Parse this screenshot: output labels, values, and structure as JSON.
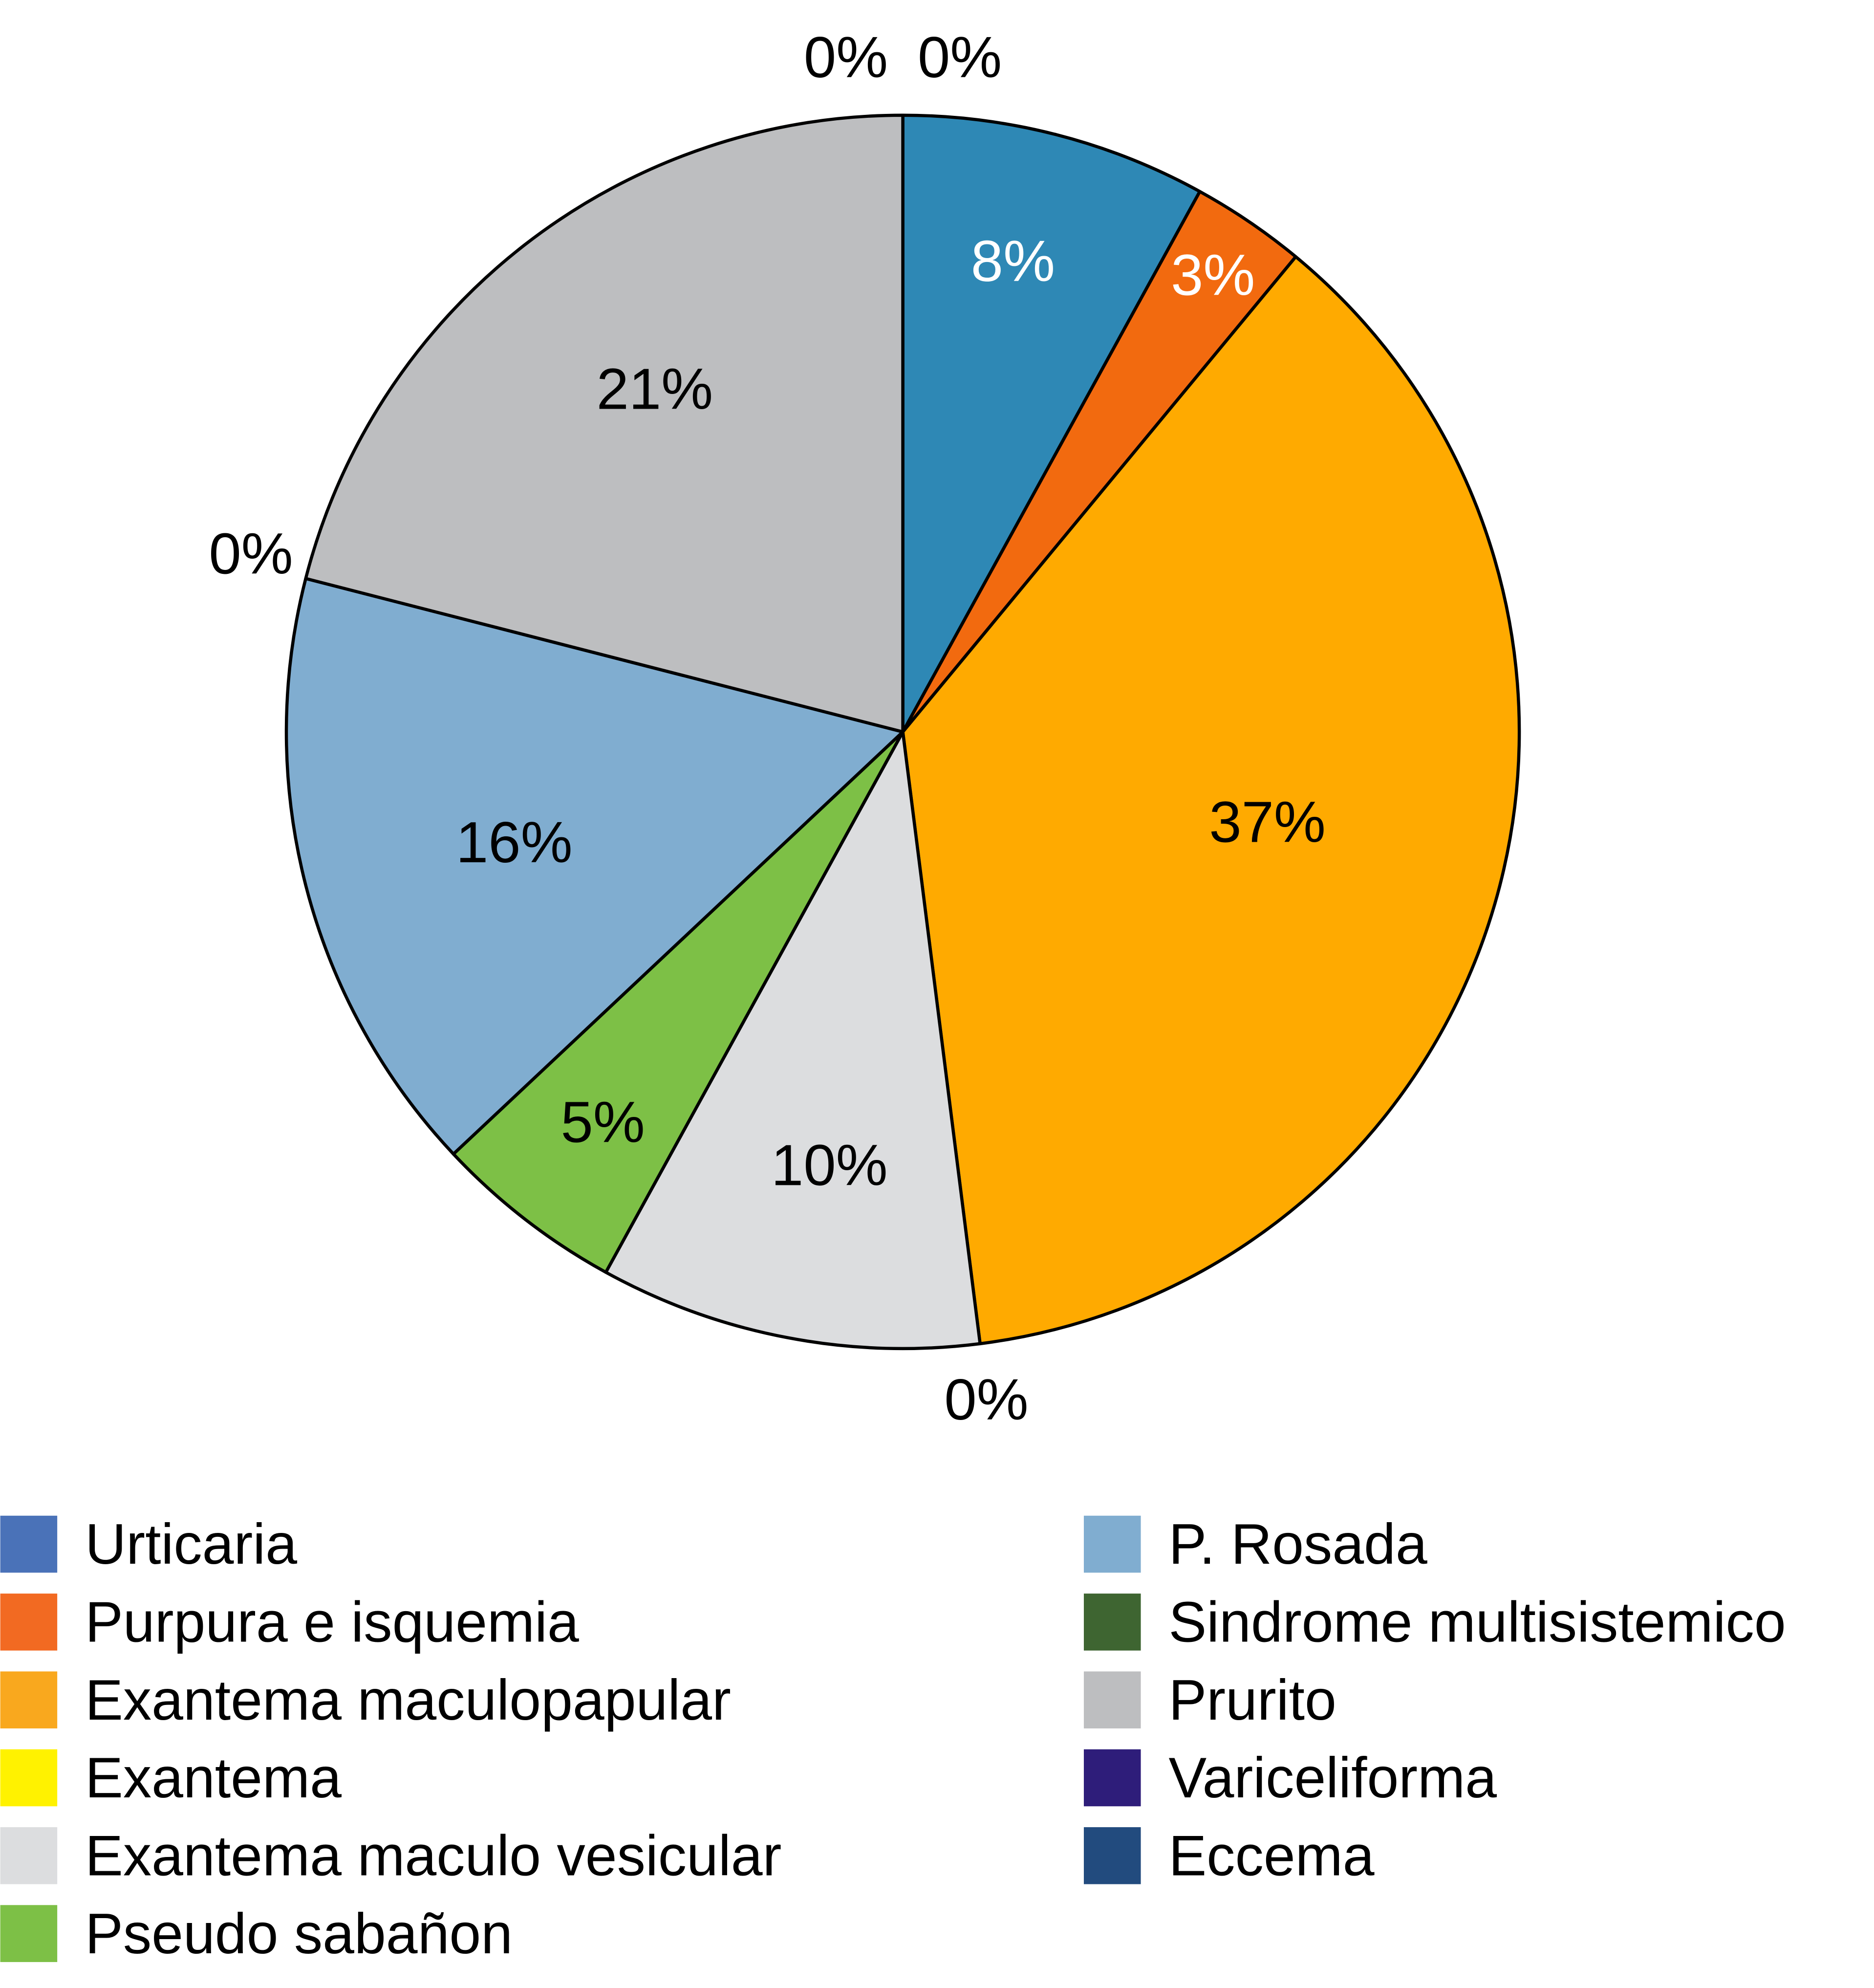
{
  "chart_data": {
    "type": "pie",
    "title": "",
    "start_angle": "12 o'clock, clockwise",
    "slices": [
      {
        "label": "Urticaria",
        "value": 8,
        "data_label": "8%",
        "color": "#2E88B5",
        "legend_color": "#4A72B8",
        "label_color": "#FFFFFF"
      },
      {
        "label": "Purpura e isquemia",
        "value": 3,
        "data_label": "3%",
        "color": "#F26A0F",
        "legend_color": "#F26A22",
        "label_color": "#FFFFFF"
      },
      {
        "label": "Exantema maculopapular",
        "value": 37,
        "data_label": "37%",
        "color": "#FFAA00",
        "legend_color": "#F9A81E",
        "label_color": "#000000"
      },
      {
        "label": "Exantema",
        "value": 0,
        "data_label": "0%",
        "color": "#FFF200",
        "legend_color": "#FFF200",
        "label_color": "#000000"
      },
      {
        "label": "Exantema maculo vesicular",
        "value": 10,
        "data_label": "10%",
        "color": "#DCDDDF",
        "legend_color": "#DCDDDF",
        "label_color": "#000000"
      },
      {
        "label": "Pseudo sabañon",
        "value": 5,
        "data_label": "5%",
        "color": "#7DC046",
        "legend_color": "#7DC046",
        "label_color": "#000000"
      },
      {
        "label": "P. Rosada",
        "value": 16,
        "data_label": "16%",
        "color": "#80ADD0",
        "legend_color": "#80ADD0",
        "label_color": "#000000"
      },
      {
        "label": "Sindrome multisistemico",
        "value": 0,
        "data_label": "0%",
        "color": "#3E6531",
        "legend_color": "#3E6531",
        "label_color": "#000000"
      },
      {
        "label": "Prurito",
        "value": 21,
        "data_label": "21%",
        "color": "#BDBEC0",
        "legend_color": "#BDBEC0",
        "label_color": "#000000"
      },
      {
        "label": "Variceliforma",
        "value": 0,
        "data_label": "0%",
        "color": "#2E1D7A",
        "legend_color": "#2E1D7A",
        "label_color": "#000000"
      },
      {
        "label": "Eccema",
        "value": 0,
        "data_label": "0%",
        "color": "#224B7E",
        "legend_color": "#224B7E",
        "label_color": "#000000"
      }
    ],
    "legend_position": "bottom, two columns"
  }
}
